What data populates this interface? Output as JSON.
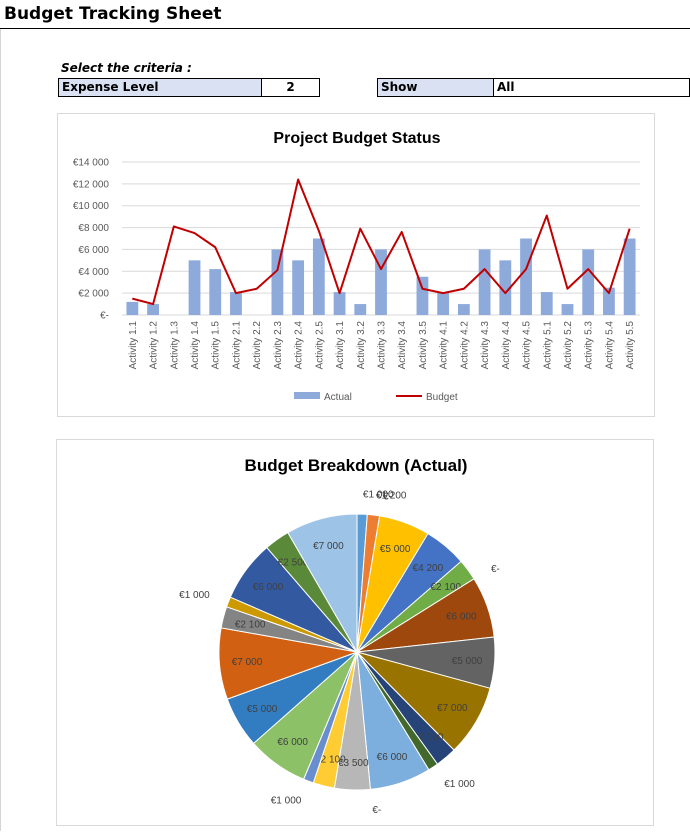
{
  "sheet": {
    "title": "Budget Tracking Sheet",
    "criteria_label": "Select the criteria :",
    "expense_level_label": "Expense Level",
    "expense_level_value": "2",
    "show_label": "Show",
    "show_value": "All"
  },
  "colors": {
    "actual_bar": "#8eaadb",
    "budget_line": "#c00000",
    "gridline": "#d9d9d9",
    "label_fill": "#d9e1f2"
  },
  "chart_data": [
    {
      "type": "bar",
      "title": "Project Budget Status",
      "categories": [
        "Activity 1.1",
        "Activity 1.2",
        "Activity 1.3",
        "Activity 1.4",
        "Activity 1.5",
        "Activity 2.1",
        "Activity 2.2",
        "Activity 2.3",
        "Activity 2.4",
        "Activity 2.5",
        "Activity 3.1",
        "Activity 3.2",
        "Activity 3.3",
        "Activity 3.4",
        "Activity 3.5",
        "Activity 4.1",
        "Activity 4.2",
        "Activity 4.3",
        "Activity 4.4",
        "Activity 4.5",
        "Activity 5.1",
        "Activity 5.2",
        "Activity 5.3",
        "Activity 5.4",
        "Activity 5.5"
      ],
      "series": [
        {
          "name": "Actual",
          "kind": "bar",
          "values": [
            1200,
            1000,
            0,
            5000,
            4200,
            2100,
            0,
            6000,
            5000,
            7000,
            2100,
            1000,
            6000,
            0,
            3500,
            2100,
            1000,
            6000,
            5000,
            7000,
            2100,
            1000,
            6000,
            2500,
            7000
          ]
        },
        {
          "name": "Budget",
          "kind": "line",
          "values": [
            1500,
            1000,
            8100,
            7500,
            6200,
            2000,
            2400,
            4100,
            12400,
            7700,
            2000,
            7900,
            4200,
            7600,
            2400,
            2000,
            2400,
            4200,
            2000,
            4200,
            9100,
            2400,
            4200,
            2000,
            7900
          ]
        }
      ],
      "ylim": [
        0,
        14000
      ],
      "yticks": [
        "€-",
        "€2 000",
        "€4 000",
        "€6 000",
        "€8 000",
        "€10 000",
        "€12 000",
        "€14 000"
      ],
      "grid": true,
      "legend": "bottom"
    },
    {
      "type": "pie",
      "title": "Budget Breakdown (Actual)",
      "slices": [
        {
          "label": "€1 000",
          "value": 1000,
          "color": "#5b9bd5"
        },
        {
          "label": "€1 200",
          "value": 1200,
          "color": "#ed7d31"
        },
        {
          "label": "€-",
          "value": 0,
          "color": "#a5a5a5"
        },
        {
          "label": "€5 000",
          "value": 5000,
          "color": "#ffc000"
        },
        {
          "label": "€4 200",
          "value": 4200,
          "color": "#4472c4"
        },
        {
          "label": "€2 100",
          "value": 2100,
          "color": "#70ad47"
        },
        {
          "label": "€-",
          "value": 0,
          "color": "#255e91"
        },
        {
          "label": "€6 000",
          "value": 6000,
          "color": "#9e480e"
        },
        {
          "label": "€5 000",
          "value": 5000,
          "color": "#636363"
        },
        {
          "label": "€7 000",
          "value": 7000,
          "color": "#997300"
        },
        {
          "label": "€2 100",
          "value": 2100,
          "color": "#264478"
        },
        {
          "label": "€1 000",
          "value": 1000,
          "color": "#43682b"
        },
        {
          "label": "€6 000",
          "value": 6000,
          "color": "#7cafdd"
        },
        {
          "label": "€-",
          "value": 0,
          "color": "#f1975a"
        },
        {
          "label": "€3 500",
          "value": 3500,
          "color": "#b7b7b7"
        },
        {
          "label": "€2 100",
          "value": 2100,
          "color": "#ffcd33"
        },
        {
          "label": "€1 000",
          "value": 1000,
          "color": "#698ed0"
        },
        {
          "label": "€6 000",
          "value": 6000,
          "color": "#8cc168"
        },
        {
          "label": "€5 000",
          "value": 5000,
          "color": "#327dc2"
        },
        {
          "label": "€7 000",
          "value": 7000,
          "color": "#d26012"
        },
        {
          "label": "€2 100",
          "value": 2100,
          "color": "#848484"
        },
        {
          "label": "€1 000",
          "value": 1000,
          "color": "#cc9a00"
        },
        {
          "label": "€6 000",
          "value": 6000,
          "color": "#335aa1"
        },
        {
          "label": "€2 500",
          "value": 2500,
          "color": "#5a8a39"
        },
        {
          "label": "€7 000",
          "value": 7000,
          "color": "#9dc3e6"
        }
      ]
    }
  ]
}
